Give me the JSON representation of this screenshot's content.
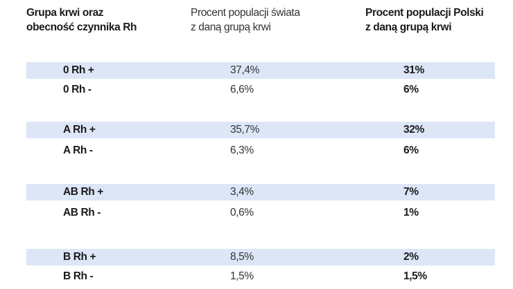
{
  "table": {
    "headers": {
      "col1": [
        "Grupa krwi oraz",
        "obecność czynnika Rh"
      ],
      "col2": [
        "Procent populacji świata",
        "z daną grupą krwi"
      ],
      "col3": [
        "Procent populacji Polski",
        "z daną grupą krwi"
      ]
    },
    "rows": [
      {
        "group": "0 Rh +",
        "world": "37,4%",
        "poland": "31%"
      },
      {
        "group": "0 Rh -",
        "world": "6,6%",
        "poland": "6%"
      },
      {
        "group": "A Rh +",
        "world": "35,7%",
        "poland": "32%"
      },
      {
        "group": "A Rh -",
        "world": "6,3%",
        "poland": "6%"
      },
      {
        "group": "AB Rh +",
        "world": "3,4%",
        "poland": "7%"
      },
      {
        "group": "AB Rh -",
        "world": "0,6%",
        "poland": "1%"
      },
      {
        "group": "B Rh +",
        "world": "8,5%",
        "poland": "2%"
      },
      {
        "group": "B Rh -",
        "world": "1,5%",
        "poland": "1,5%"
      }
    ]
  },
  "colors": {
    "shade": "#dce6f7",
    "text": "#1a1a1a"
  }
}
